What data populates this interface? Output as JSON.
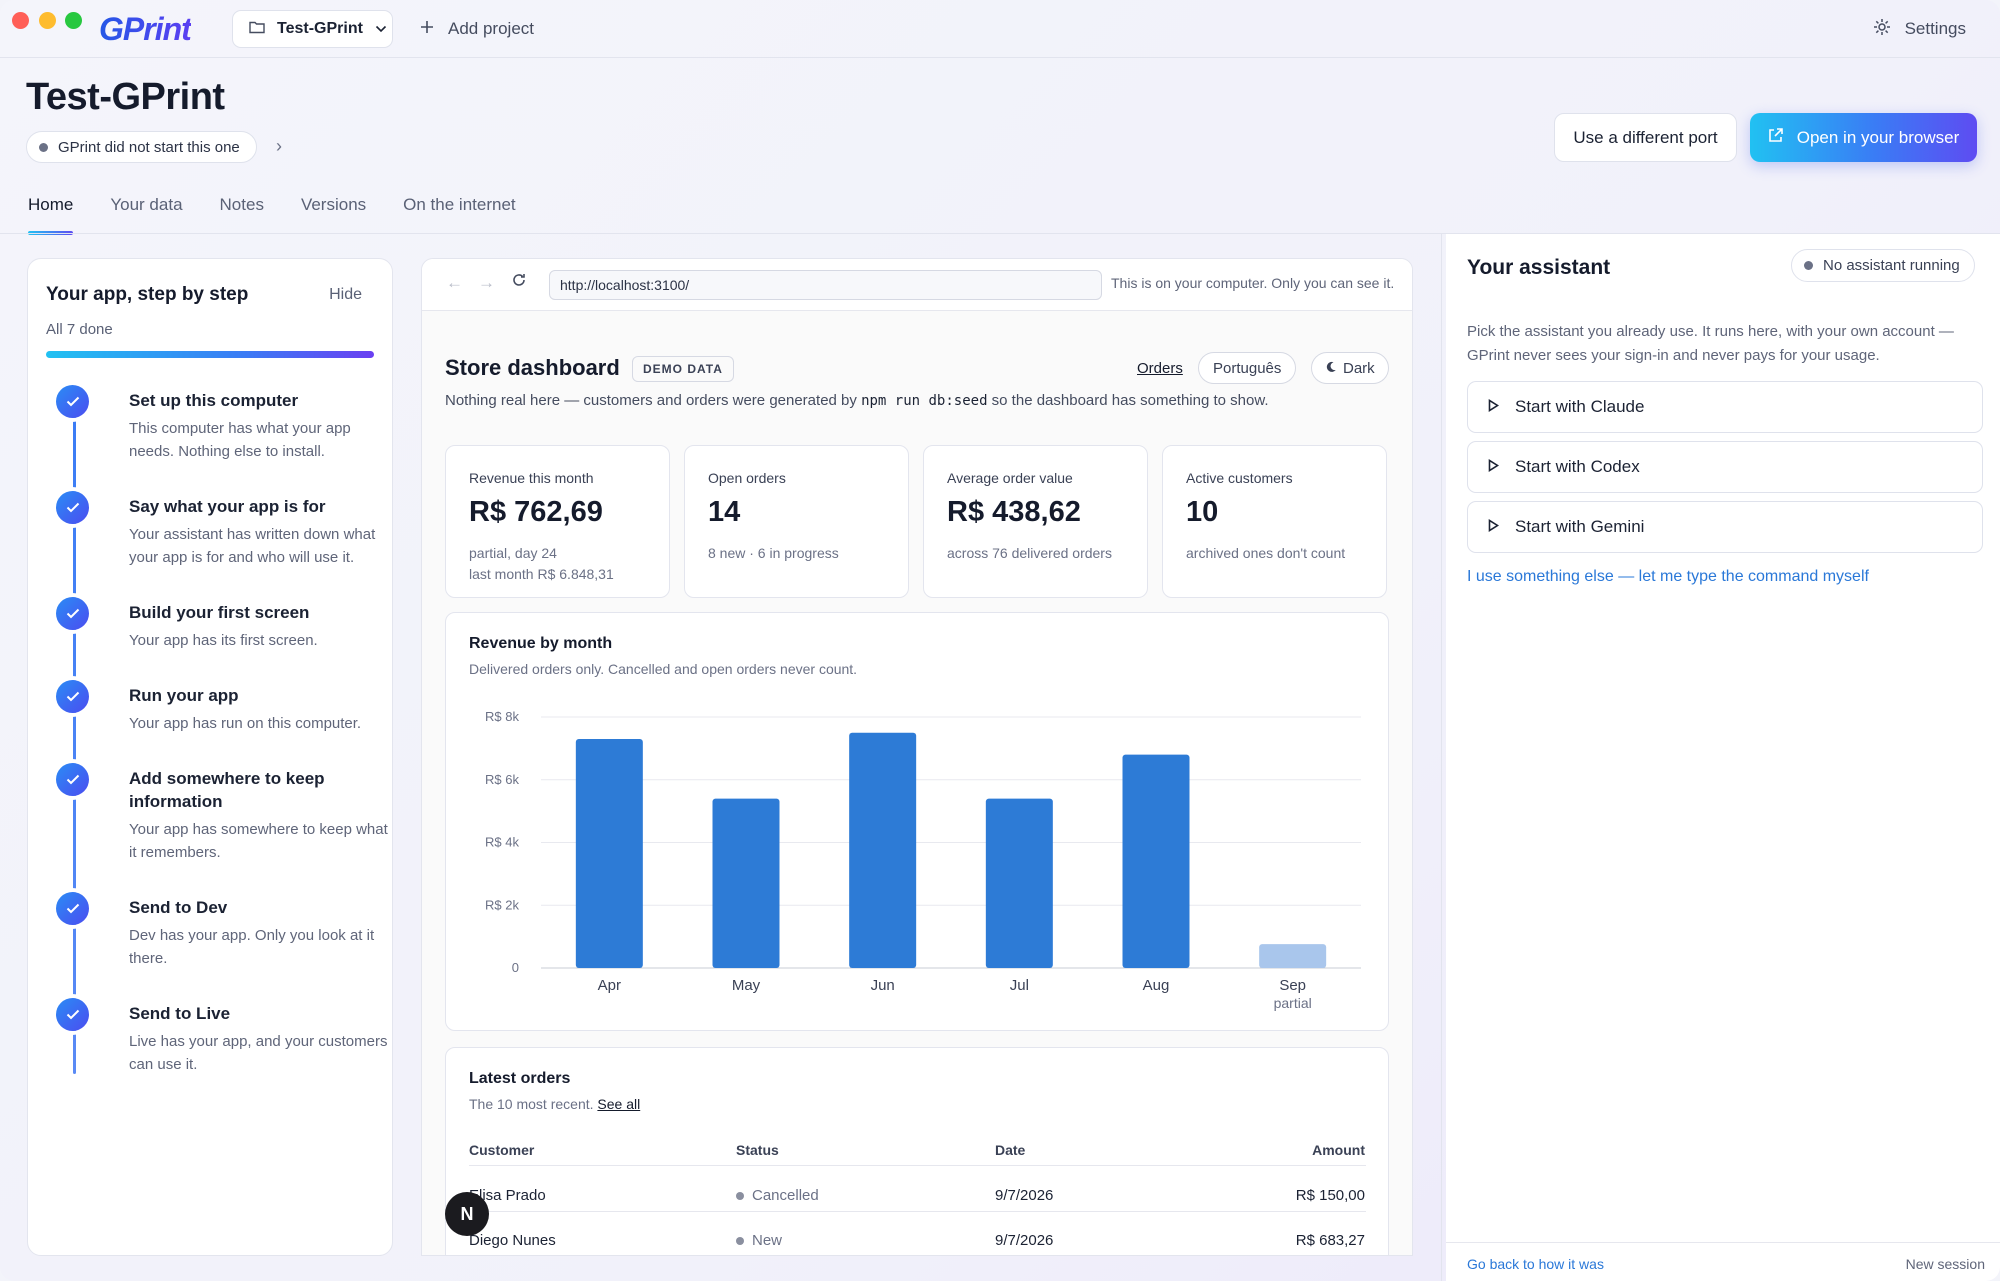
{
  "topbar": {
    "logo": "GPrint",
    "project": "Test-GPrint",
    "add_project": "Add project",
    "settings": "Settings"
  },
  "header": {
    "title": "Test-GPrint",
    "status": "GPrint did not start this one",
    "port_button": "Use a different port",
    "open_button": "Open in your browser"
  },
  "tabs": [
    "Home",
    "Your data",
    "Notes",
    "Versions",
    "On the internet"
  ],
  "steps": {
    "title": "Your app, step by step",
    "hide": "Hide",
    "progress": "All 7 done",
    "progress_fraction": 1.0,
    "items": [
      {
        "title": "Set up this computer",
        "desc": "This computer has what your app needs. Nothing else to install."
      },
      {
        "title": "Say what your app is for",
        "desc": "Your assistant has written down what your app is for and who will use it."
      },
      {
        "title": "Build your first screen",
        "desc": "Your app has its first screen."
      },
      {
        "title": "Run your app",
        "desc": "Your app has run on this computer."
      },
      {
        "title": "Add somewhere to keep information",
        "desc": "Your app has somewhere to keep what it remembers."
      },
      {
        "title": "Send to Dev",
        "desc": "Dev has your app. Only you look at it there."
      },
      {
        "title": "Send to Live",
        "desc": "Live has your app, and your customers can use it."
      }
    ]
  },
  "browser": {
    "url": "http://localhost:3100/",
    "note": "This is on your computer. Only you can see it."
  },
  "dashboard": {
    "title": "Store dashboard",
    "badge": "DEMO DATA",
    "orders_link": "Orders",
    "language": "Português",
    "dark": "Dark",
    "subtitle_pre": "Nothing real here — customers and orders were generated by",
    "subtitle_code": "npm run db:seed",
    "subtitle_post": "so the dashboard has something to show.",
    "kpis": [
      {
        "label": "Revenue this month",
        "value": "R$ 762,69",
        "note1": "partial, day 24",
        "note2": "last month R$ 6.848,31"
      },
      {
        "label": "Open orders",
        "value": "14",
        "note1": "8 new · 6 in progress",
        "note2": ""
      },
      {
        "label": "Average order value",
        "value": "R$ 438,62",
        "note1": "across 76 delivered orders",
        "note2": ""
      },
      {
        "label": "Active customers",
        "value": "10",
        "note1": "archived ones don't count",
        "note2": ""
      }
    ],
    "chart": {
      "title": "Revenue by month",
      "subtitle": "Delivered orders only. Cancelled and open orders never count."
    },
    "orders": {
      "title": "Latest orders",
      "subtitle": "The 10 most recent.",
      "see_all": "See all",
      "columns": [
        "Customer",
        "Status",
        "Date",
        "Amount"
      ],
      "rows": [
        {
          "customer": "Elisa Prado",
          "status": "Cancelled",
          "date": "9/7/2026",
          "amount": "R$ 150,00"
        },
        {
          "customer": "Diego Nunes",
          "status": "New",
          "date": "9/7/2026",
          "amount": "R$ 683,27"
        }
      ]
    },
    "fab": "N"
  },
  "chart_data": {
    "type": "bar",
    "title": "Revenue by month",
    "categories": [
      "Apr",
      "May",
      "Jun",
      "Jul",
      "Aug",
      "Sep"
    ],
    "category_sublabels": [
      "",
      "",
      "",
      "",
      "",
      "partial"
    ],
    "values": [
      7300,
      5400,
      7500,
      5400,
      6800,
      760
    ],
    "highlight": [
      false,
      false,
      false,
      false,
      false,
      true
    ],
    "yticks": [
      "0",
      "R$ 2k",
      "R$ 4k",
      "R$ 6k",
      "R$ 8k"
    ],
    "ytick_values": [
      0,
      2000,
      4000,
      6000,
      8000
    ],
    "ylim": [
      0,
      8000
    ],
    "bar_color": "#2d7bd6",
    "partial_color": "#a9c6ec",
    "grid": true
  },
  "assistant": {
    "title": "Your assistant",
    "status": "No assistant running",
    "desc": "Pick the assistant you already use. It runs here, with your own account — GPrint never sees your sign-in and never pays for your usage.",
    "buttons": [
      "Start with Claude",
      "Start with Codex",
      "Start with Gemini"
    ],
    "custom_link": "I use something else — let me type the command myself",
    "footer_left": "Go back to how it was",
    "footer_right": "New session"
  }
}
